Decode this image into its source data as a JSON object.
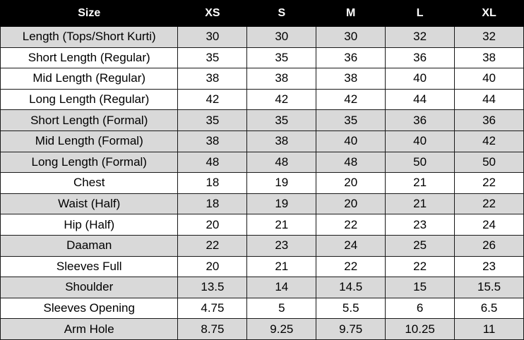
{
  "table": {
    "headers": [
      "Size",
      "XS",
      "S",
      "M",
      "L",
      "XL"
    ],
    "rows": [
      {
        "label": "Length (Tops/Short Kurti)",
        "values": [
          "30",
          "30",
          "30",
          "32",
          "32"
        ],
        "shaded": true
      },
      {
        "label": "Short Length (Regular)",
        "values": [
          "35",
          "35",
          "36",
          "36",
          "38"
        ],
        "shaded": false
      },
      {
        "label": "Mid Length (Regular)",
        "values": [
          "38",
          "38",
          "38",
          "40",
          "40"
        ],
        "shaded": false
      },
      {
        "label": "Long Length (Regular)",
        "values": [
          "42",
          "42",
          "42",
          "44",
          "44"
        ],
        "shaded": false
      },
      {
        "label": "Short Length (Formal)",
        "values": [
          "35",
          "35",
          "35",
          "36",
          "36"
        ],
        "shaded": true
      },
      {
        "label": "Mid Length (Formal)",
        "values": [
          "38",
          "38",
          "40",
          "40",
          "42"
        ],
        "shaded": true
      },
      {
        "label": "Long Length (Formal)",
        "values": [
          "48",
          "48",
          "48",
          "50",
          "50"
        ],
        "shaded": true
      },
      {
        "label": "Chest",
        "values": [
          "18",
          "19",
          "20",
          "21",
          "22"
        ],
        "shaded": false
      },
      {
        "label": "Waist (Half)",
        "values": [
          "18",
          "19",
          "20",
          "21",
          "22"
        ],
        "shaded": true
      },
      {
        "label": "Hip (Half)",
        "values": [
          "20",
          "21",
          "22",
          "23",
          "24"
        ],
        "shaded": false
      },
      {
        "label": "Daaman",
        "values": [
          "22",
          "23",
          "24",
          "25",
          "26"
        ],
        "shaded": true
      },
      {
        "label": "Sleeves Full",
        "values": [
          "20",
          "21",
          "22",
          "22",
          "23"
        ],
        "shaded": false
      },
      {
        "label": "Shoulder",
        "values": [
          "13.5",
          "14",
          "14.5",
          "15",
          "15.5"
        ],
        "shaded": true
      },
      {
        "label": "Sleeves Opening",
        "values": [
          "4.75",
          "5",
          "5.5",
          "6",
          "6.5"
        ],
        "shaded": false
      },
      {
        "label": "Arm Hole",
        "values": [
          "8.75",
          "9.25",
          "9.75",
          "10.25",
          "11"
        ],
        "shaded": true
      }
    ]
  },
  "colors": {
    "header_bg": "#000000",
    "header_text": "#ffffff",
    "shaded_row": "#d9d9d9",
    "plain_row": "#ffffff",
    "border": "#1a1a1a"
  }
}
